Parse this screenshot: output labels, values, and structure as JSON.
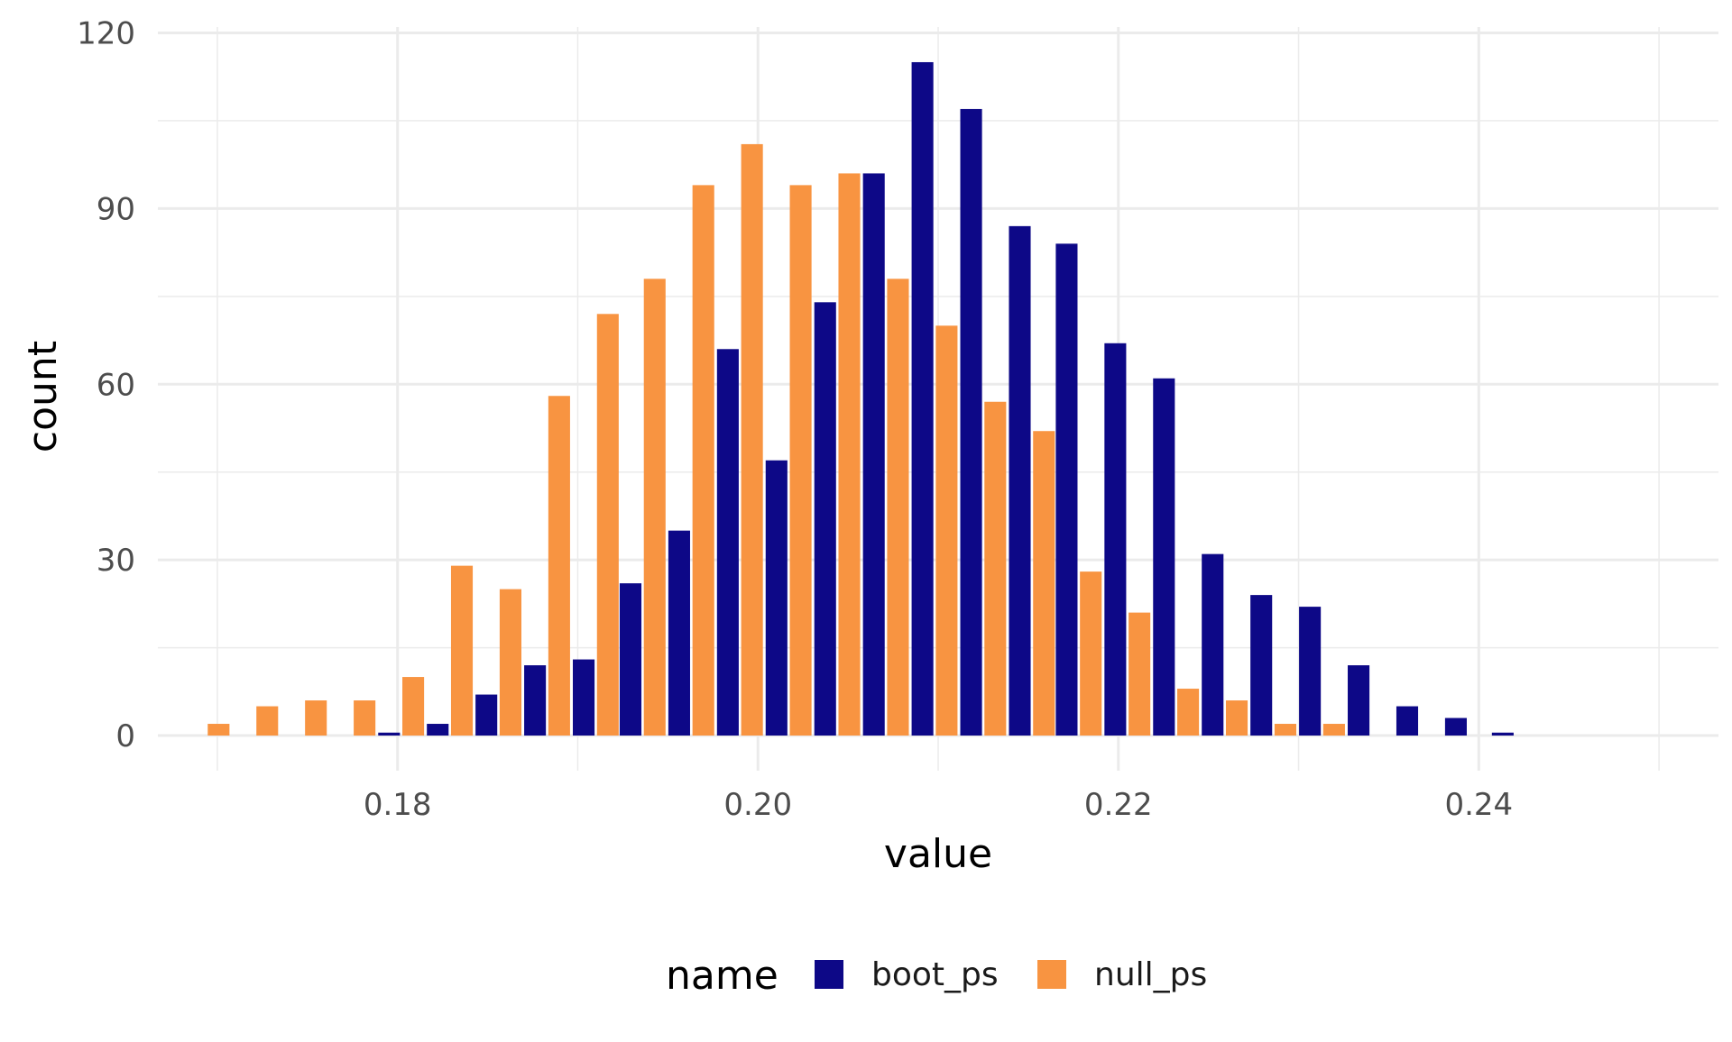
{
  "chart_data": {
    "type": "bar",
    "title": "",
    "xlabel": "value",
    "ylabel": "count",
    "xlim": [
      0.1667,
      0.2533
    ],
    "ylim": [
      -6,
      121
    ],
    "x_ticks": [
      0.18,
      0.2,
      0.22,
      0.24
    ],
    "x_tick_labels": [
      "0.18",
      "0.20",
      "0.22",
      "0.24"
    ],
    "y_ticks": [
      0,
      30,
      60,
      90,
      120
    ],
    "y_tick_labels": [
      "0",
      "30",
      "60",
      "90",
      "120"
    ],
    "grid": true,
    "legend": {
      "title": "name",
      "position": "bottom",
      "entries": [
        "boot_ps",
        "null_ps"
      ]
    },
    "bin_width": 0.00268,
    "bin_centers": [
      0.1694,
      0.1721,
      0.1748,
      0.1775,
      0.1802,
      0.1829,
      0.1856,
      0.1883,
      0.191,
      0.1936,
      0.1963,
      0.199,
      0.2017,
      0.2044,
      0.2071,
      0.2098,
      0.2125,
      0.2152,
      0.2178,
      0.2205,
      0.2232,
      0.2259,
      0.2286,
      0.2313,
      0.234,
      0.2367,
      0.2394,
      0.242,
      0.2447
    ],
    "series": [
      {
        "name": "boot_ps",
        "color": "#0d0887",
        "values": [
          0,
          0,
          0,
          0,
          0.5,
          2,
          7,
          12,
          13,
          26,
          35,
          66,
          47,
          74,
          96,
          115,
          107,
          87,
          84,
          67,
          61,
          31,
          24,
          22,
          12,
          5,
          3,
          0.5,
          0
        ]
      },
      {
        "name": "null_ps",
        "color": "#f89441",
        "values": [
          2,
          5,
          6,
          6,
          10,
          29,
          25,
          58,
          72,
          78,
          94,
          101,
          94,
          96,
          78,
          70,
          57,
          52,
          28,
          21,
          8,
          6,
          2,
          2,
          0,
          0,
          0,
          0,
          0
        ]
      }
    ]
  }
}
